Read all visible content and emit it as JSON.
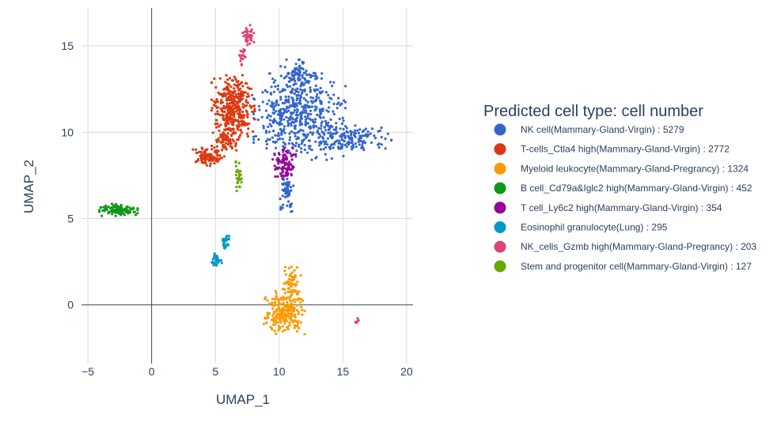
{
  "chart_data": {
    "type": "scatter",
    "xlabel": "UMAP_1",
    "ylabel": "UMAP_2",
    "xlim": [
      -5.5,
      20.5
    ],
    "ylim": [
      -3.4,
      17.2
    ],
    "x_ticks": [
      -5,
      0,
      5,
      10,
      15,
      20
    ],
    "x_tick_labels": [
      "−5",
      "0",
      "5",
      "10",
      "15",
      "20"
    ],
    "y_ticks": [
      0,
      5,
      10,
      15
    ],
    "y_tick_labels": [
      "0",
      "5",
      "10",
      "15"
    ],
    "grid": true,
    "legend_position": "right",
    "legend_title": "Predicted cell type: cell number",
    "series": [
      {
        "name": "NK cell(Mammary-Gland-Virgin) : 5279",
        "color": "#3366cc",
        "blobs": [
          {
            "cx": 11.6,
            "cy": 10.9,
            "rx": 3.6,
            "ry": 2.5,
            "n": 520
          },
          {
            "cx": 15.8,
            "cy": 9.6,
            "rx": 3.0,
            "ry": 0.9,
            "n": 140
          },
          {
            "cx": 10.6,
            "cy": 6.6,
            "rx": 0.6,
            "ry": 1.2,
            "n": 60
          },
          {
            "cx": 11.5,
            "cy": 13.3,
            "rx": 1.6,
            "ry": 0.9,
            "n": 80
          }
        ]
      },
      {
        "name": "T-cells_Ctla4 high(Mammary-Gland-Virgin) : 2772",
        "color": "#dc3912",
        "blobs": [
          {
            "cx": 6.4,
            "cy": 11.5,
            "rx": 1.7,
            "ry": 1.8,
            "n": 360
          },
          {
            "cx": 4.4,
            "cy": 8.6,
            "rx": 1.3,
            "ry": 0.55,
            "n": 90
          },
          {
            "cx": 5.8,
            "cy": 9.5,
            "rx": 1.1,
            "ry": 0.7,
            "n": 70
          }
        ]
      },
      {
        "name": "Myeloid leukocyte(Mammary-Gland-Pregrancy) : 1324",
        "color": "#ff9900",
        "blobs": [
          {
            "cx": 10.4,
            "cy": -0.4,
            "rx": 1.6,
            "ry": 1.3,
            "n": 230
          },
          {
            "cx": 11.0,
            "cy": 1.2,
            "rx": 0.7,
            "ry": 1.0,
            "n": 60
          }
        ]
      },
      {
        "name": "B cell_Cd79a&Iglc2 high(Mammary-Gland-Virgin) : 452",
        "color": "#109618",
        "blobs": [
          {
            "cx": -2.6,
            "cy": 5.5,
            "rx": 1.5,
            "ry": 0.35,
            "n": 110
          }
        ]
      },
      {
        "name": "T cell_Ly6c2 high(Mammary-Gland-Virgin) : 354",
        "color": "#990099",
        "blobs": [
          {
            "cx": 10.4,
            "cy": 8.2,
            "rx": 0.9,
            "ry": 0.9,
            "n": 90
          }
        ]
      },
      {
        "name": "Eosinophil granulocyte(Lung) : 295",
        "color": "#0099c6",
        "blobs": [
          {
            "cx": 5.1,
            "cy": 2.6,
            "rx": 0.4,
            "ry": 0.45,
            "n": 40
          },
          {
            "cx": 5.8,
            "cy": 3.7,
            "rx": 0.35,
            "ry": 0.6,
            "n": 30
          }
        ]
      },
      {
        "name": "NK_cells_Gzmb high(Mammary-Gland-Pregrancy) : 203",
        "color": "#dd4477",
        "blobs": [
          {
            "cx": 7.6,
            "cy": 15.6,
            "rx": 0.5,
            "ry": 0.6,
            "n": 40
          },
          {
            "cx": 7.1,
            "cy": 14.4,
            "rx": 0.25,
            "ry": 0.6,
            "n": 20
          },
          {
            "cx": 16.1,
            "cy": -0.9,
            "rx": 0.15,
            "ry": 0.15,
            "n": 6
          }
        ]
      },
      {
        "name": "Stem and progenitor cell(Mammary-Gland-Virgin) : 127",
        "color": "#66aa00",
        "blobs": [
          {
            "cx": 6.8,
            "cy": 7.5,
            "rx": 0.25,
            "ry": 0.9,
            "n": 30
          }
        ]
      }
    ]
  }
}
